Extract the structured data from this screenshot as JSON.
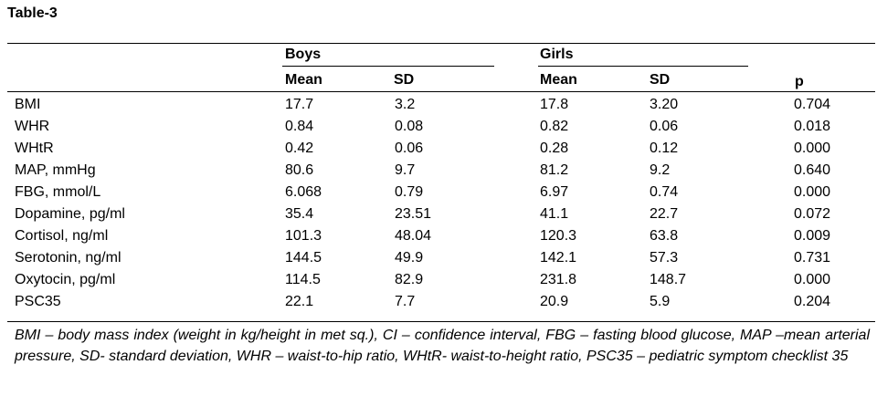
{
  "title": "Table-3",
  "groups": {
    "boys": "Boys",
    "girls": "Girls"
  },
  "columns": {
    "mean": "Mean",
    "sd": "SD",
    "p": "p"
  },
  "rows": [
    {
      "label": "BMI",
      "boys_mean": "17.7",
      "boys_sd": "3.2",
      "girls_mean": "17.8",
      "girls_sd": "3.20",
      "p": "0.704"
    },
    {
      "label": "WHR",
      "boys_mean": "0.84",
      "boys_sd": "0.08",
      "girls_mean": "0.82",
      "girls_sd": "0.06",
      "p": "0.018"
    },
    {
      "label": "WHtR",
      "boys_mean": "0.42",
      "boys_sd": "0.06",
      "girls_mean": "0.28",
      "girls_sd": "0.12",
      "p": "0.000"
    },
    {
      "label": "MAP, mmHg",
      "boys_mean": "80.6",
      "boys_sd": "9.7",
      "girls_mean": "81.2",
      "girls_sd": "9.2",
      "p": "0.640"
    },
    {
      "label": "FBG, mmol/L",
      "boys_mean": "6.068",
      "boys_sd": "0.79",
      "girls_mean": "6.97",
      "girls_sd": "0.74",
      "p": "0.000"
    },
    {
      "label": "Dopamine, pg/ml",
      "boys_mean": "35.4",
      "boys_sd": "23.51",
      "girls_mean": "41.1",
      "girls_sd": "22.7",
      "p": "0.072"
    },
    {
      "label": "Cortisol, ng/ml",
      "boys_mean": "101.3",
      "boys_sd": "48.04",
      "girls_mean": "120.3",
      "girls_sd": "63.8",
      "p": "0.009"
    },
    {
      "label": "Serotonin, ng/ml",
      "boys_mean": "144.5",
      "boys_sd": "49.9",
      "girls_mean": "142.1",
      "girls_sd": "57.3",
      "p": "0.731"
    },
    {
      "label": "Oxytocin, pg/ml",
      "boys_mean": "114.5",
      "boys_sd": "82.9",
      "girls_mean": "231.8",
      "girls_sd": "148.7",
      "p": "0.000"
    },
    {
      "label": "PSC35",
      "boys_mean": "22.1",
      "boys_sd": "7.7",
      "girls_mean": "20.9",
      "girls_sd": "5.9",
      "p": "0.204"
    }
  ],
  "footnote": "BMI – body mass index (weight in kg/height in met sq.), CI – confidence interval, FBG – fasting blood glucose, MAP –mean arterial pressure, SD- standard deviation, WHR – waist-to-hip ratio, WHtR- waist-to-height ratio, PSC35 – pediatric symptom checklist 35"
}
